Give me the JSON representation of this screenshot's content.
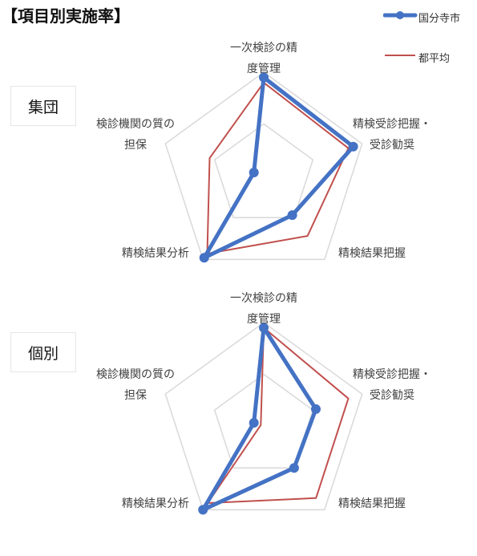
{
  "page": {
    "heading": "【項目別実施率】"
  },
  "legend": [
    {
      "name": "国分寺市",
      "color": "#4472C4",
      "style": "thick-marker"
    },
    {
      "name": "都平均",
      "color": "#C0504D",
      "style": "thin-line"
    }
  ],
  "chart_data": [
    {
      "type": "radar",
      "group_label": "集団",
      "axes": [
        [
          "一次検診の精",
          "度管理"
        ],
        [
          "精検受診把握・",
          "受診勧奨"
        ],
        [
          "精検結果把握"
        ],
        [
          "精検結果分析"
        ],
        [
          "検診機関の質の",
          "担保"
        ]
      ],
      "rmax": 100,
      "grid_levels": [
        50,
        100
      ],
      "series": [
        {
          "name": "国分寺市",
          "values": [
            95,
            91,
            47,
            98,
            10
          ]
        },
        {
          "name": "都平均",
          "values": [
            90,
            86,
            72,
            93,
            55
          ]
        }
      ]
    },
    {
      "type": "radar",
      "group_label": "個別",
      "axes": [
        [
          "一次検診の精",
          "度管理"
        ],
        [
          "精検受診把握・",
          "受診勧奨"
        ],
        [
          "精検結果把握"
        ],
        [
          "精検結果分析"
        ],
        [
          "検診機関の質の",
          "担保"
        ]
      ],
      "rmax": 100,
      "grid_levels": [
        50,
        100
      ],
      "series": [
        {
          "name": "国分寺市",
          "values": [
            95,
            53,
            50,
            100,
            10
          ]
        },
        {
          "name": "都平均",
          "values": [
            95,
            86,
            86,
            92,
            3
          ]
        }
      ]
    }
  ]
}
